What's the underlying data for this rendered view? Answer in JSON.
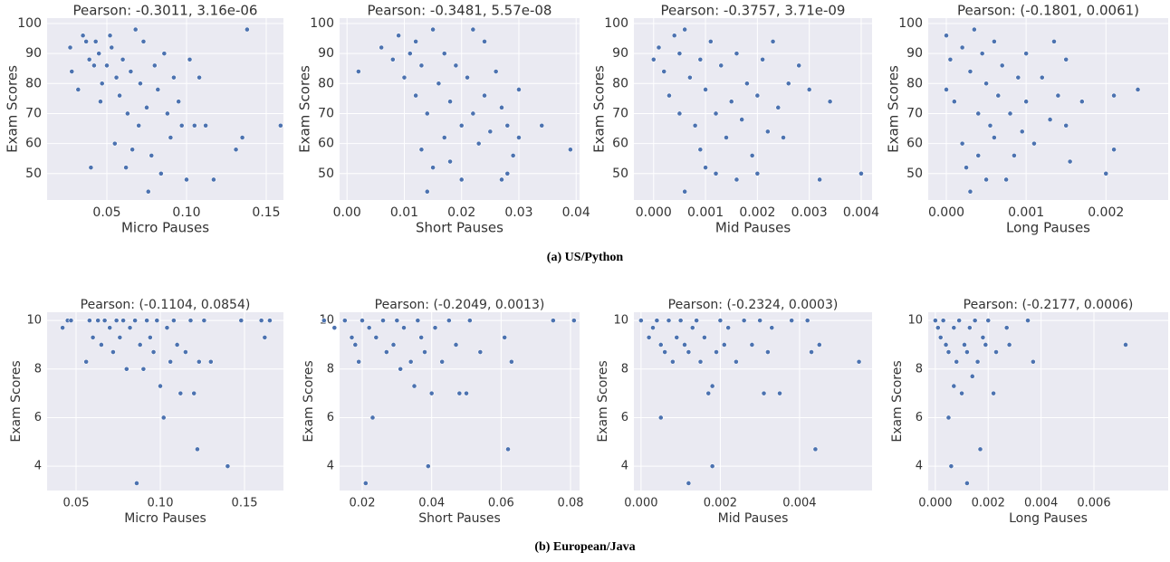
{
  "captions": [
    "(a) US/Python",
    "(b) European/Java"
  ],
  "chart_data": [
    {
      "type": "scatter",
      "title": "Pearson: -0.3011, 3.16e-06",
      "x_label": "Micro Pauses",
      "y_label": "Exam Scores",
      "color": "#4c72b0",
      "grid": true,
      "xlim": [
        0.0125,
        0.1608
      ],
      "ylim": [
        41.2,
        101.8
      ],
      "xticks": [
        0.05,
        {
          "value": 0.1,
          "label": "0.10"
        },
        0.15
      ],
      "yticks": [
        50,
        60,
        70,
        80,
        90,
        100
      ],
      "x": [
        0.027,
        0.028,
        0.032,
        0.035,
        0.037,
        0.039,
        0.04,
        0.042,
        0.043,
        0.045,
        0.046,
        0.047,
        0.05,
        0.052,
        0.053,
        0.055,
        0.056,
        0.058,
        0.06,
        0.062,
        0.063,
        0.065,
        0.066,
        0.068,
        0.07,
        0.071,
        0.073,
        0.075,
        0.076,
        0.078,
        0.08,
        0.082,
        0.084,
        0.086,
        0.088,
        0.09,
        0.092,
        0.095,
        0.097,
        0.1,
        0.102,
        0.105,
        0.108,
        0.112,
        0.117,
        0.131,
        0.135,
        0.138,
        0.159
      ],
      "values": [
        92,
        84,
        78,
        96,
        94,
        88,
        52,
        86,
        94,
        90,
        74,
        80,
        86,
        96,
        92,
        60,
        82,
        76,
        88,
        52,
        70,
        84,
        58,
        98,
        66,
        80,
        94,
        72,
        44,
        56,
        86,
        78,
        50,
        90,
        70,
        62,
        82,
        74,
        66,
        48,
        88,
        66,
        82,
        66,
        48,
        58,
        62,
        98,
        66
      ]
    },
    {
      "type": "scatter",
      "title": "Pearson: -0.3481, 5.57e-08",
      "x_label": "Short Pauses",
      "y_label": "Exam Scores",
      "color": "#4c72b0",
      "grid": true,
      "xlim": [
        -0.0013,
        0.0406
      ],
      "ylim": [
        41.2,
        101.8
      ],
      "xticks": [
        {
          "value": 0,
          "label": "0.00"
        },
        0.01,
        0.02,
        0.03,
        0.04
      ],
      "yticks": [
        50,
        60,
        70,
        80,
        90,
        100
      ],
      "x": [
        0.002,
        0.006,
        0.008,
        0.009,
        0.01,
        0.011,
        0.012,
        0.012,
        0.013,
        0.013,
        0.014,
        0.014,
        0.015,
        0.015,
        0.016,
        0.017,
        0.017,
        0.018,
        0.018,
        0.019,
        0.02,
        0.02,
        0.021,
        0.022,
        0.022,
        0.023,
        0.024,
        0.024,
        0.025,
        0.026,
        0.027,
        0.027,
        0.028,
        0.028,
        0.029,
        0.03,
        0.03,
        0.034,
        0.039
      ],
      "values": [
        84,
        92,
        88,
        96,
        82,
        90,
        76,
        94,
        58,
        86,
        44,
        70,
        98,
        52,
        80,
        90,
        62,
        74,
        54,
        86,
        66,
        48,
        82,
        98,
        70,
        60,
        94,
        76,
        64,
        84,
        48,
        72,
        50,
        66,
        56,
        78,
        62,
        66,
        58
      ]
    },
    {
      "type": "scatter",
      "title": "Pearson: -0.3757, 3.71e-09",
      "x_label": "Mid Pauses",
      "y_label": "Exam Scores",
      "color": "#4c72b0",
      "grid": true,
      "xlim": [
        -0.00038,
        0.00421
      ],
      "ylim": [
        41.2,
        101.8
      ],
      "xticks": [
        {
          "value": 0,
          "label": "0.000"
        },
        0.001,
        0.002,
        0.003,
        0.004
      ],
      "yticks": [
        50,
        60,
        70,
        80,
        90,
        100
      ],
      "x": [
        0,
        0.0001,
        0.0002,
        0.0003,
        0.0004,
        0.0005,
        0.0005,
        0.0006,
        0.0006,
        0.0007,
        0.0008,
        0.0009,
        0.0009,
        0.001,
        0.001,
        0.0011,
        0.0012,
        0.0012,
        0.0013,
        0.0014,
        0.0015,
        0.0016,
        0.0016,
        0.0017,
        0.0018,
        0.0019,
        0.002,
        0.002,
        0.0021,
        0.0022,
        0.0023,
        0.0024,
        0.0025,
        0.0026,
        0.0028,
        0.003,
        0.0032,
        0.0034,
        0.004
      ],
      "values": [
        88,
        92,
        84,
        76,
        96,
        90,
        70,
        98,
        44,
        82,
        66,
        58,
        88,
        52,
        78,
        94,
        70,
        50,
        86,
        62,
        74,
        48,
        90,
        68,
        80,
        56,
        76,
        50,
        88,
        64,
        94,
        72,
        62,
        80,
        86,
        78,
        48,
        74,
        50
      ]
    },
    {
      "type": "scatter",
      "title": "Pearson: (-0.1801, 0.0061)",
      "x_label": "Long Pauses",
      "y_label": "Exam Scores",
      "color": "#4c72b0",
      "grid": true,
      "xlim": [
        -0.000227,
        0.00278
      ],
      "ylim": [
        41.2,
        101.8
      ],
      "xticks": [
        {
          "value": 0,
          "label": "0.000"
        },
        0.001,
        0.002
      ],
      "yticks": [
        50,
        60,
        70,
        80,
        90,
        100
      ],
      "x": [
        0,
        0,
        5e-05,
        0.0001,
        0.0002,
        0.0002,
        0.00025,
        0.0003,
        0.0003,
        0.00035,
        0.0004,
        0.0004,
        0.00045,
        0.0005,
        0.0005,
        0.00055,
        0.0006,
        0.0006,
        0.00065,
        0.0007,
        0.00075,
        0.0008,
        0.00085,
        0.0009,
        0.00095,
        0.001,
        0.001,
        0.0011,
        0.0012,
        0.0013,
        0.00135,
        0.0014,
        0.0015,
        0.00155,
        0.0015,
        0.0017,
        0.002,
        0.0021,
        0.0021,
        0.0024
      ],
      "values": [
        78,
        96,
        88,
        74,
        60,
        92,
        52,
        44,
        84,
        98,
        56,
        70,
        90,
        80,
        48,
        66,
        94,
        62,
        76,
        86,
        48,
        70,
        56,
        82,
        64,
        90,
        74,
        60,
        82,
        68,
        94,
        76,
        66,
        54,
        88,
        74,
        50,
        76,
        58,
        78
      ]
    },
    {
      "type": "scatter",
      "title": "Pearson: (-0.1104, 0.0854)",
      "x_label": "Micro Pauses",
      "y_label": "Exam Scores",
      "color": "#4c72b0",
      "grid": true,
      "xlim": [
        0.0328,
        0.1731
      ],
      "ylim": [
        3.0,
        10.34
      ],
      "xticks": [
        0.05,
        {
          "value": 0.1,
          "label": "0.10"
        },
        0.15
      ],
      "yticks": [
        4,
        6,
        8,
        10
      ],
      "x": [
        0.042,
        0.045,
        0.047,
        0.056,
        0.058,
        0.06,
        0.063,
        0.065,
        0.067,
        0.07,
        0.072,
        0.074,
        0.076,
        0.078,
        0.08,
        0.082,
        0.085,
        0.086,
        0.088,
        0.09,
        0.092,
        0.094,
        0.096,
        0.098,
        0.1,
        0.102,
        0.104,
        0.106,
        0.108,
        0.11,
        0.112,
        0.115,
        0.118,
        0.12,
        0.122,
        0.123,
        0.126,
        0.13,
        0.14,
        0.148,
        0.16,
        0.162,
        0.165
      ],
      "values": [
        9.7,
        10,
        10,
        8.3,
        10,
        9.3,
        10,
        9,
        10,
        9.7,
        8.7,
        10,
        9.3,
        10,
        8,
        9.7,
        10,
        3.3,
        9,
        8,
        10,
        9.3,
        8.7,
        10,
        7.3,
        6,
        9.7,
        8.3,
        10,
        9,
        7,
        8.7,
        10,
        7,
        4.7,
        8.3,
        10,
        8.3,
        4,
        10,
        10,
        9.3,
        10
      ]
    },
    {
      "type": "scatter",
      "title": "Pearson: (-0.2049, 0.0013)",
      "x_label": "Short Pauses",
      "y_label": "Exam Scores",
      "color": "#4c72b0",
      "grid": true,
      "xlim": [
        0.01348,
        0.0826
      ],
      "ylim": [
        3.0,
        10.34
      ],
      "xticks": [
        0.02,
        0.04,
        0.06,
        0.08
      ],
      "yticks": [
        4,
        6,
        8,
        10
      ],
      "x": [
        0.009,
        0.012,
        0.015,
        0.017,
        0.018,
        0.019,
        0.02,
        0.021,
        0.022,
        0.023,
        0.024,
        0.026,
        0.027,
        0.029,
        0.03,
        0.031,
        0.032,
        0.034,
        0.035,
        0.036,
        0.037,
        0.038,
        0.039,
        0.04,
        0.041,
        0.043,
        0.045,
        0.047,
        0.048,
        0.05,
        0.051,
        0.054,
        0.061,
        0.062,
        0.063,
        0.075,
        0.081
      ],
      "values": [
        10,
        9.7,
        10,
        9.3,
        9,
        8.3,
        10,
        3.3,
        9.7,
        6,
        9.3,
        10,
        8.7,
        9,
        10,
        8,
        9.7,
        8.3,
        7.3,
        10,
        9.3,
        8.7,
        4,
        7,
        9.7,
        8.3,
        10,
        9,
        7,
        7,
        10,
        8.7,
        9.3,
        4.7,
        8.3,
        10,
        10
      ]
    },
    {
      "type": "scatter",
      "title": "Pearson: (-0.2324, 0.0003)",
      "x_label": "Mid Pauses",
      "y_label": "Exam Scores",
      "color": "#4c72b0",
      "grid": true,
      "xlim": [
        -0.00018,
        0.00583
      ],
      "ylim": [
        3.0,
        10.34
      ],
      "xticks": [
        {
          "value": 0,
          "label": "0.000"
        },
        0.002,
        0.004
      ],
      "yticks": [
        4,
        6,
        8,
        10
      ],
      "x": [
        0,
        0.0002,
        0.0003,
        0.0004,
        0.0005,
        0.0005,
        0.0006,
        0.0007,
        0.0008,
        0.0009,
        0.001,
        0.0011,
        0.0012,
        0.0012,
        0.0013,
        0.0014,
        0.0015,
        0.0016,
        0.0017,
        0.0018,
        0.0018,
        0.0019,
        0.002,
        0.0021,
        0.0022,
        0.0024,
        0.0026,
        0.0028,
        0.003,
        0.0031,
        0.0032,
        0.0033,
        0.0035,
        0.0038,
        0.0042,
        0.0043,
        0.0044,
        0.0045,
        0.0055
      ],
      "values": [
        10,
        9.3,
        9.7,
        10,
        6,
        9,
        8.7,
        10,
        8.3,
        9.3,
        10,
        9,
        3.3,
        8.7,
        9.7,
        10,
        8.3,
        9.3,
        7,
        4,
        7.3,
        8.7,
        10,
        9,
        9.7,
        8.3,
        10,
        9,
        10,
        7,
        8.7,
        9.7,
        7,
        10,
        10,
        8.7,
        4.7,
        9,
        8.3
      ]
    },
    {
      "type": "scatter",
      "title": "Pearson: (-0.2177, 0.0006)",
      "x_label": "Long Pauses",
      "y_label": "Exam Scores",
      "color": "#4c72b0",
      "grid": true,
      "xlim": [
        -0.00027,
        0.00881
      ],
      "ylim": [
        3.0,
        10.34
      ],
      "xticks": [
        {
          "value": 0,
          "label": "0.000"
        },
        0.002,
        0.004,
        0.006
      ],
      "yticks": [
        4,
        6,
        8,
        10
      ],
      "x": [
        0,
        0.0001,
        0.0002,
        0.0003,
        0.0004,
        0.0005,
        0.0005,
        0.0006,
        0.0007,
        0.0007,
        0.0008,
        0.0009,
        0.001,
        0.0011,
        0.0012,
        0.0012,
        0.0013,
        0.0014,
        0.0015,
        0.0016,
        0.0017,
        0.0018,
        0.0019,
        0.002,
        0.0022,
        0.0023,
        0.0027,
        0.0028,
        0.0035,
        0.0037,
        0.0072
      ],
      "values": [
        10,
        9.7,
        9.3,
        10,
        9,
        8.7,
        6,
        4,
        7.3,
        9.7,
        8.3,
        10,
        7,
        9,
        3.3,
        8.7,
        9.7,
        7.7,
        10,
        8.3,
        4.7,
        9.3,
        9,
        10,
        7,
        8.7,
        9.7,
        9,
        10,
        8.3,
        9
      ]
    }
  ]
}
